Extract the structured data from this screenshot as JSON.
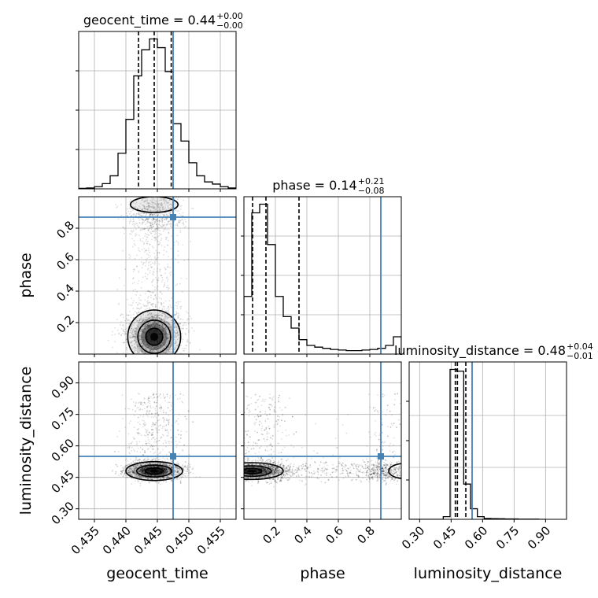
{
  "chart_data": {
    "type": "corner",
    "parameters": [
      "geocent_time",
      "phase",
      "luminosity_distance"
    ],
    "axis_labels": [
      "geocent_time",
      "phase",
      "luminosity_distance"
    ],
    "truth_color": "#4682b4",
    "titles": [
      {
        "main": "geocent_time = 0.44",
        "plus": "+0.00",
        "minus": "−0.00"
      },
      {
        "main": "phase = 0.14",
        "plus": "+0.21",
        "minus": "−0.08"
      },
      {
        "main": "luminosity_distance = 0.48",
        "plus": "+0.04",
        "minus": "−0.01"
      }
    ],
    "ranges": [
      [
        0.4325,
        0.4575
      ],
      [
        0.0,
        1.0
      ],
      [
        0.25,
        1.0
      ]
    ],
    "truths": [
      0.4475,
      0.87,
      0.55
    ],
    "quantiles": [
      [
        0.442,
        0.4445,
        0.4472
      ],
      [
        0.055,
        0.14,
        0.35
      ],
      [
        0.47,
        0.48,
        0.52
      ]
    ],
    "ticks": [
      [
        0.435,
        0.44,
        0.445,
        0.45,
        0.455
      ],
      [
        0.2,
        0.4,
        0.6,
        0.8
      ],
      [
        0.3,
        0.45,
        0.6,
        0.75,
        0.9
      ]
    ],
    "tick_labels": [
      [
        "0.435",
        "0.440",
        "0.445",
        "0.450",
        "0.455"
      ],
      [
        "0.2",
        "0.4",
        "0.6",
        "0.8"
      ],
      [
        "0.30",
        "0.45",
        "0.60",
        "0.75",
        "0.90"
      ]
    ],
    "histograms": [
      {
        "edges": [
          0.4325,
          0.43375,
          0.435,
          0.43625,
          0.4375,
          0.43875,
          0.44,
          0.44125,
          0.4425,
          0.44375,
          0.445,
          0.44625,
          0.4475,
          0.44875,
          0.45,
          0.45125,
          0.4525,
          0.45375,
          0.455,
          0.45625,
          0.4575
        ],
        "counts": [
          1,
          2,
          5,
          12,
          30,
          82,
          160,
          260,
          320,
          345,
          325,
          270,
          150,
          110,
          60,
          30,
          16,
          11,
          5,
          2
        ]
      },
      {
        "edges": [
          0.0,
          0.05,
          0.1,
          0.15,
          0.2,
          0.25,
          0.3,
          0.35,
          0.4,
          0.45,
          0.5,
          0.55,
          0.6,
          0.65,
          0.7,
          0.75,
          0.8,
          0.85,
          0.9,
          0.95,
          1.0
        ],
        "counts": [
          100,
          245,
          260,
          190,
          100,
          65,
          45,
          25,
          15,
          12,
          10,
          8,
          7,
          6,
          6,
          7,
          8,
          10,
          15,
          30
        ]
      },
      {
        "edges": [
          0.25,
          0.2825,
          0.315,
          0.3475,
          0.38,
          0.4125,
          0.445,
          0.4775,
          0.51,
          0.5425,
          0.575,
          0.6075,
          0.64,
          0.6725,
          0.705,
          0.7375,
          0.77,
          0.8025,
          0.835,
          0.8675,
          0.9
        ],
        "counts": [
          0,
          0,
          0,
          0,
          0,
          15,
          850,
          840,
          200,
          60,
          15,
          5,
          4,
          3,
          2,
          2,
          1,
          1,
          1,
          0
        ]
      }
    ]
  }
}
